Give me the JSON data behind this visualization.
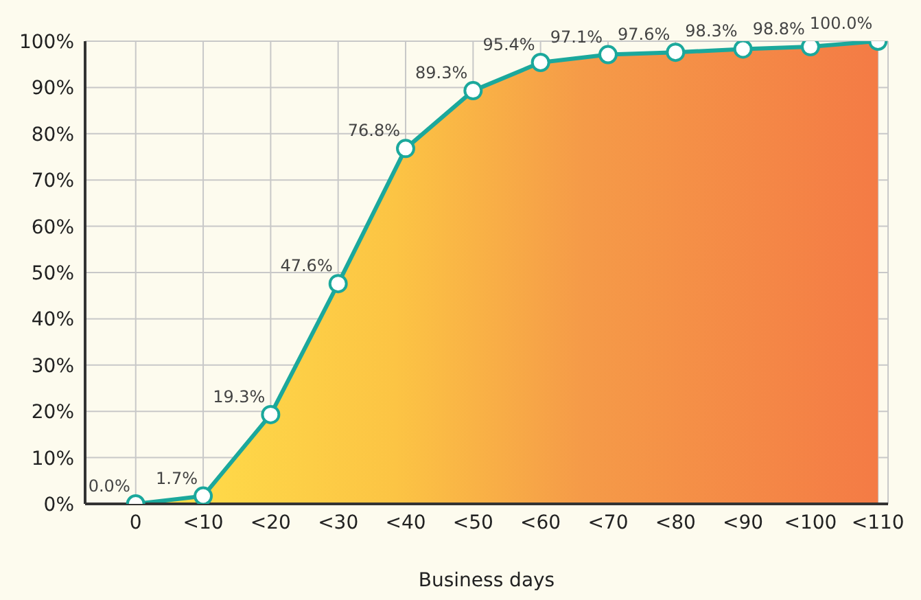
{
  "chart_data": {
    "type": "area",
    "xlabel": "Business days",
    "categories": [
      "0",
      "<10",
      "<20",
      "<30",
      "<40",
      "<50",
      "<60",
      "<70",
      "<80",
      "<90",
      "<100",
      "<110"
    ],
    "series": [
      {
        "color": "#1ba89c",
        "values": [
          0,
          1.7,
          19.3,
          47.6,
          76.8,
          89.3,
          95.4,
          97.1,
          97.6,
          98.3,
          98.8,
          100
        ],
        "value_labels": [
          "0.0%",
          "1.7%",
          "19.3%",
          "47.6%",
          "76.8%",
          "89.3%",
          "95.4%",
          "97.1%",
          "97.6%",
          "98.3%",
          "98.8%",
          "100.0%"
        ]
      }
    ],
    "ylim": [
      0,
      100
    ],
    "yticks": [
      {
        "value": 0,
        "label": "0%"
      },
      {
        "value": 10,
        "label": "10%"
      },
      {
        "value": 20,
        "label": "20%"
      },
      {
        "value": 30,
        "label": "30%"
      },
      {
        "value": 40,
        "label": "40%"
      },
      {
        "value": 50,
        "label": "50%"
      },
      {
        "value": 60,
        "label": "60%"
      },
      {
        "value": 70,
        "label": "70%"
      },
      {
        "value": 80,
        "label": "80%"
      },
      {
        "value": 90,
        "label": "90%"
      },
      {
        "value": 100,
        "label": "100%"
      }
    ],
    "grid": true,
    "marker": "circle"
  }
}
